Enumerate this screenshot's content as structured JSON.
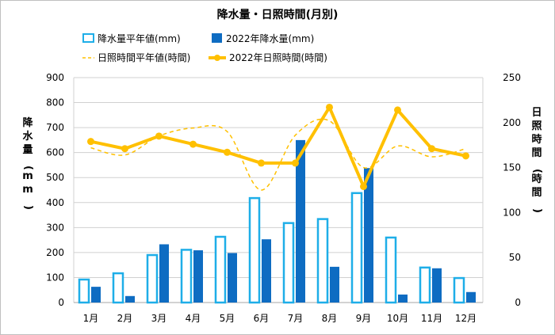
{
  "chart_data": {
    "type": "bar",
    "title": "降水量・日照時間(月別)",
    "categories": [
      "1月",
      "2月",
      "3月",
      "4月",
      "5月",
      "6月",
      "7月",
      "8月",
      "9月",
      "10月",
      "11月",
      "12月"
    ],
    "y_left": {
      "label": "降水量(mm)",
      "ylim": [
        0,
        900
      ],
      "ticks": [
        0,
        100,
        200,
        300,
        400,
        500,
        600,
        700,
        800,
        900
      ]
    },
    "y_right": {
      "label": "日照時間(時間)",
      "ylim": [
        0,
        250
      ],
      "ticks": [
        0,
        50,
        100,
        150,
        200,
        250
      ]
    },
    "grid": true,
    "legend": "top",
    "series": [
      {
        "name": "降水量平年値(mm)",
        "type": "bar",
        "style": "outline",
        "axis": "left",
        "color": "#1eaee8",
        "values": [
          92,
          117,
          190,
          211,
          263,
          418,
          318,
          334,
          438,
          260,
          140,
          98
        ]
      },
      {
        "name": "2022年降水量(mm)",
        "type": "bar",
        "style": "filled",
        "axis": "left",
        "color": "#0e6cc2",
        "values": [
          63,
          26,
          233,
          209,
          198,
          253,
          650,
          143,
          538,
          32,
          137,
          42
        ]
      },
      {
        "name": "日照時間平年値(時間)",
        "type": "line",
        "style": "dashed",
        "axis": "right",
        "color": "#ffc000",
        "values": [
          172,
          164,
          185,
          194,
          190,
          125,
          186,
          202,
          150,
          174,
          162,
          171
        ]
      },
      {
        "name": "2022年日照時間(時間)",
        "type": "line",
        "style": "solid-marker",
        "axis": "right",
        "color": "#ffc000",
        "values": [
          179,
          171,
          185,
          176,
          167,
          155,
          155,
          217,
          129,
          214,
          171,
          163
        ]
      }
    ]
  }
}
